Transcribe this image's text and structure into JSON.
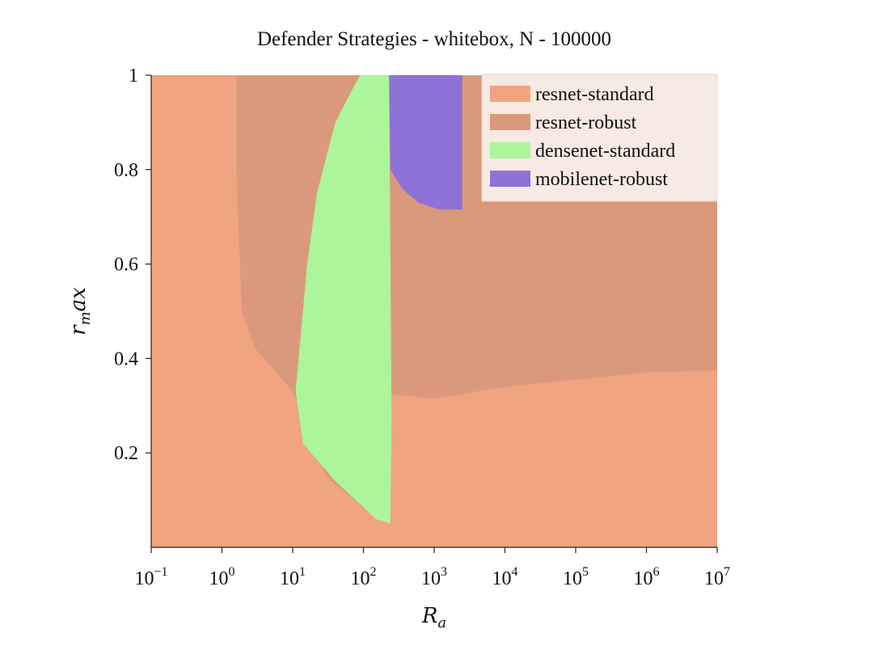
{
  "chart_data": {
    "type": "heatmap",
    "title": "Defender Strategies - whitebox, N - 100000",
    "xlabel": "R_a",
    "ylabel": "r_m ax",
    "x_scale": "log",
    "xlim": [
      0.1,
      10000000
    ],
    "ylim": [
      0.0,
      1.0
    ],
    "x_ticks": [
      {
        "value": 0.1,
        "base": "10",
        "exp": "−1"
      },
      {
        "value": 1,
        "base": "10",
        "exp": "0"
      },
      {
        "value": 10,
        "base": "10",
        "exp": "1"
      },
      {
        "value": 100,
        "base": "10",
        "exp": "2"
      },
      {
        "value": 1000,
        "base": "10",
        "exp": "3"
      },
      {
        "value": 10000,
        "base": "10",
        "exp": "4"
      },
      {
        "value": 100000,
        "base": "10",
        "exp": "5"
      },
      {
        "value": 1000000,
        "base": "10",
        "exp": "6"
      },
      {
        "value": 10000000,
        "base": "10",
        "exp": "7"
      }
    ],
    "y_ticks": [
      {
        "value": 0.2,
        "label": "0.2"
      },
      {
        "value": 0.4,
        "label": "0.4"
      },
      {
        "value": 0.6,
        "label": "0.6"
      },
      {
        "value": 0.8,
        "label": "0.8"
      },
      {
        "value": 1.0,
        "label": "1"
      }
    ],
    "legend_position": "top-right",
    "legend_background": "#f7e9e3",
    "grid": false,
    "series": [
      {
        "name": "resnet-standard",
        "color": "#f0a47f"
      },
      {
        "name": "resnet-robust",
        "color": "#db997c"
      },
      {
        "name": "densenet-standard",
        "color": "#adf59a"
      },
      {
        "name": "mobilenet-robust",
        "color": "#8f72d8"
      }
    ],
    "background_region": "resnet-standard",
    "regions": [
      {
        "series": "resnet-robust",
        "polygon": [
          [
            1.6,
            1.0
          ],
          [
            10000000,
            1.0
          ],
          [
            10000000,
            0.375
          ],
          [
            1000000,
            0.37
          ],
          [
            100000,
            0.355
          ],
          [
            10000,
            0.34
          ],
          [
            1000,
            0.315
          ],
          [
            220,
            0.325
          ],
          [
            200,
            0.12
          ],
          [
            150,
            0.06
          ],
          [
            30,
            0.15
          ],
          [
            10,
            0.33
          ],
          [
            3,
            0.42
          ],
          [
            1.9,
            0.5
          ],
          [
            1.6,
            0.8
          ]
        ]
      },
      {
        "series": "densenet-standard",
        "polygon": [
          [
            90,
            1.0
          ],
          [
            230,
            1.0
          ],
          [
            250,
            0.27
          ],
          [
            240,
            0.05
          ],
          [
            150,
            0.06
          ],
          [
            40,
            0.14
          ],
          [
            14,
            0.22
          ],
          [
            11,
            0.33
          ],
          [
            13,
            0.45
          ],
          [
            16,
            0.6
          ],
          [
            22,
            0.75
          ],
          [
            40,
            0.9
          ],
          [
            70,
            0.97
          ]
        ]
      },
      {
        "series": "mobilenet-robust",
        "polygon": [
          [
            230,
            1.0
          ],
          [
            2500,
            1.0
          ],
          [
            2500,
            0.715
          ],
          [
            1200,
            0.715
          ],
          [
            600,
            0.73
          ],
          [
            350,
            0.76
          ],
          [
            240,
            0.8
          ]
        ]
      }
    ]
  }
}
